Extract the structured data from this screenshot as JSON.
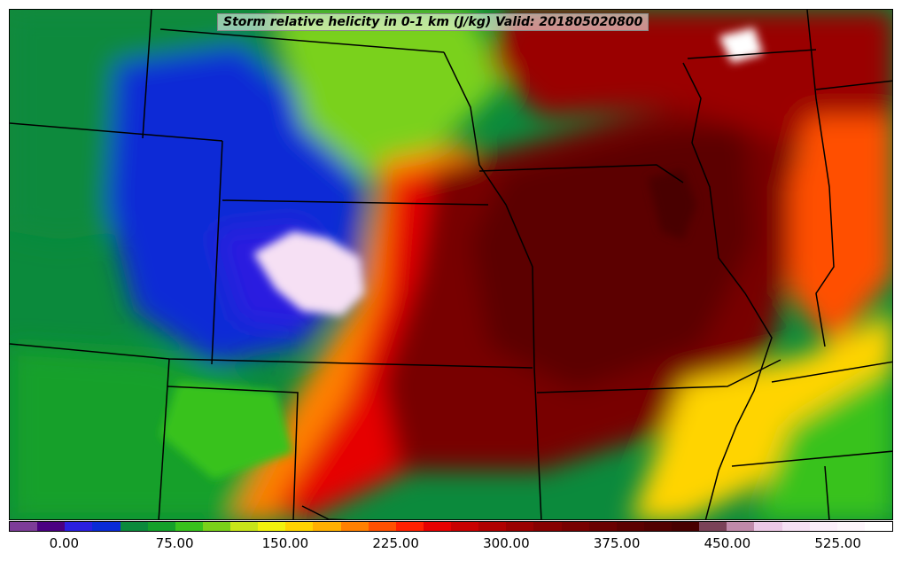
{
  "title": "Storm relative helicity in 0-1 km (J/kg) Valid: 201805020800",
  "colorbar": {
    "colors": [
      "#7d3c98",
      "#4b0082",
      "#2b1fe0",
      "#0a2bd6",
      "#0b8a3c",
      "#14a02a",
      "#38c21d",
      "#7ad11a",
      "#c7e51a",
      "#f2f20d",
      "#ffd400",
      "#ffb000",
      "#ff8000",
      "#ff5000",
      "#ff2000",
      "#e60000",
      "#c80000",
      "#b00000",
      "#9a0000",
      "#870000",
      "#780000",
      "#6a0000",
      "#5c0000",
      "#520000",
      "#480000",
      "#7a4258",
      "#c08aaa",
      "#ecc8e6",
      "#f6e0f4",
      "#fbeefa",
      "#fdf6fc",
      "#ffffff"
    ],
    "tick_labels": [
      "0.00",
      "75.00",
      "150.00",
      "225.00",
      "300.00",
      "375.00",
      "450.00",
      "525.00"
    ],
    "tick_values": [
      0,
      75,
      150,
      225,
      300,
      375,
      450,
      525
    ],
    "min": -37.5,
    "max": 562.5
  },
  "regions": [
    {
      "value": 40
    },
    {
      "value": 60
    },
    {
      "value": 20
    },
    {
      "value": 0
    },
    {
      "value": 100
    },
    {
      "value": 200
    },
    {
      "value": 260
    },
    {
      "value": 340
    },
    {
      "value": 380
    },
    {
      "value": 310
    },
    {
      "value": 220
    },
    {
      "value": 150
    },
    {
      "value": 90
    },
    {
      "value": 500
    },
    {
      "value": 420
    },
    {
      "value": 560
    },
    {
      "value": 80
    }
  ]
}
